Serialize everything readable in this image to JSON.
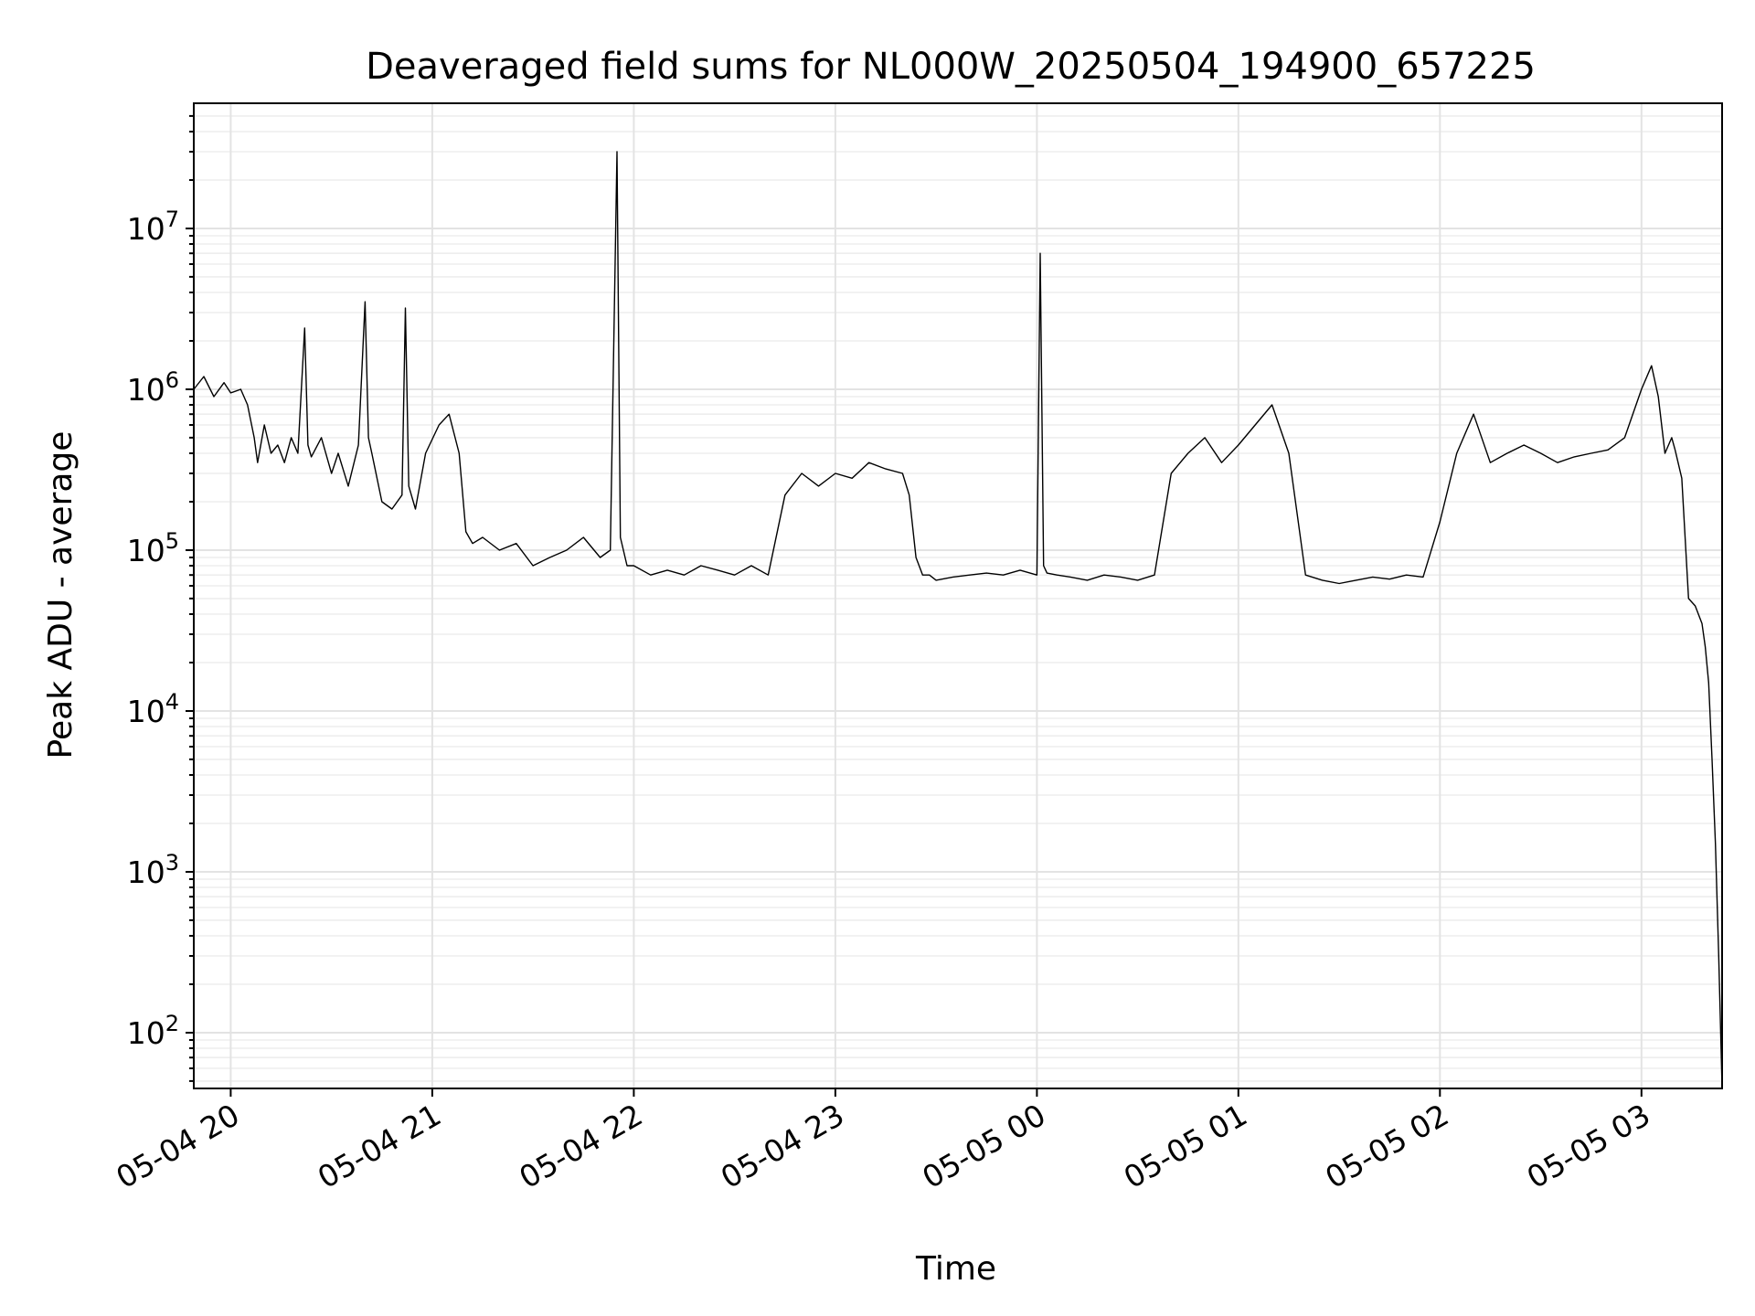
{
  "chart_data": {
    "type": "line",
    "title": "Deaveraged field sums for NL000W_20250504_194900_657225",
    "xlabel": "Time",
    "ylabel": "Peak ADU - average",
    "yscale": "log",
    "grid": true,
    "line_color": "#000000",
    "xlim": [
      "2025-05-04 19:49",
      "2025-05-05 03:24"
    ],
    "ylim": [
      45,
      60000000
    ],
    "x_ticks": [
      {
        "label": "05-04 20",
        "value": "2025-05-04 20:00"
      },
      {
        "label": "05-04 21",
        "value": "2025-05-04 21:00"
      },
      {
        "label": "05-04 22",
        "value": "2025-05-04 22:00"
      },
      {
        "label": "05-04 23",
        "value": "2025-05-04 23:00"
      },
      {
        "label": "05-05 00",
        "value": "2025-05-05 00:00"
      },
      {
        "label": "05-05 01",
        "value": "2025-05-05 01:00"
      },
      {
        "label": "05-05 02",
        "value": "2025-05-05 02:00"
      },
      {
        "label": "05-05 03",
        "value": "2025-05-05 03:00"
      }
    ],
    "y_ticks": [
      {
        "base": "10",
        "exp": "2",
        "value": 100
      },
      {
        "base": "10",
        "exp": "3",
        "value": 1000
      },
      {
        "base": "10",
        "exp": "4",
        "value": 10000
      },
      {
        "base": "10",
        "exp": "5",
        "value": 100000
      },
      {
        "base": "10",
        "exp": "6",
        "value": 1000000
      },
      {
        "base": "10",
        "exp": "7",
        "value": 10000000
      }
    ],
    "series": [
      {
        "x": [
          "2025-05-04 19:49",
          "2025-05-04 19:52",
          "2025-05-04 19:55",
          "2025-05-04 19:58",
          "2025-05-04 20:00",
          "2025-05-04 20:03",
          "2025-05-04 20:05",
          "2025-05-04 20:07",
          "2025-05-04 20:08",
          "2025-05-04 20:10",
          "2025-05-04 20:12",
          "2025-05-04 20:14",
          "2025-05-04 20:16",
          "2025-05-04 20:18",
          "2025-05-04 20:20",
          "2025-05-04 20:22",
          "2025-05-04 20:23",
          "2025-05-04 20:24",
          "2025-05-04 20:27",
          "2025-05-04 20:30",
          "2025-05-04 20:32",
          "2025-05-04 20:35",
          "2025-05-04 20:38",
          "2025-05-04 20:40",
          "2025-05-04 20:41",
          "2025-05-04 20:42",
          "2025-05-04 20:45",
          "2025-05-04 20:48",
          "2025-05-04 20:51",
          "2025-05-04 20:52",
          "2025-05-04 20:53",
          "2025-05-04 20:55",
          "2025-05-04 20:58",
          "2025-05-04 21:02",
          "2025-05-04 21:05",
          "2025-05-04 21:08",
          "2025-05-04 21:10",
          "2025-05-04 21:12",
          "2025-05-04 21:15",
          "2025-05-04 21:20",
          "2025-05-04 21:25",
          "2025-05-04 21:30",
          "2025-05-04 21:35",
          "2025-05-04 21:40",
          "2025-05-04 21:45",
          "2025-05-04 21:50",
          "2025-05-04 21:53",
          "2025-05-04 21:55",
          "2025-05-04 21:56",
          "2025-05-04 21:58",
          "2025-05-04 22:00",
          "2025-05-04 22:05",
          "2025-05-04 22:10",
          "2025-05-04 22:15",
          "2025-05-04 22:20",
          "2025-05-04 22:25",
          "2025-05-04 22:30",
          "2025-05-04 22:35",
          "2025-05-04 22:40",
          "2025-05-04 22:45",
          "2025-05-04 22:50",
          "2025-05-04 22:55",
          "2025-05-04 23:00",
          "2025-05-04 23:05",
          "2025-05-04 23:10",
          "2025-05-04 23:15",
          "2025-05-04 23:20",
          "2025-05-04 23:22",
          "2025-05-04 23:24",
          "2025-05-04 23:26",
          "2025-05-04 23:28",
          "2025-05-04 23:30",
          "2025-05-04 23:35",
          "2025-05-04 23:40",
          "2025-05-04 23:45",
          "2025-05-04 23:50",
          "2025-05-04 23:55",
          "2025-05-05 00:00",
          "2025-05-05 00:01",
          "2025-05-05 00:02",
          "2025-05-05 00:03",
          "2025-05-05 00:06",
          "2025-05-05 00:10",
          "2025-05-05 00:15",
          "2025-05-05 00:20",
          "2025-05-05 00:25",
          "2025-05-05 00:30",
          "2025-05-05 00:35",
          "2025-05-05 00:40",
          "2025-05-05 00:45",
          "2025-05-05 00:50",
          "2025-05-05 00:55",
          "2025-05-05 01:00",
          "2025-05-05 01:05",
          "2025-05-05 01:10",
          "2025-05-05 01:15",
          "2025-05-05 01:20",
          "2025-05-05 01:25",
          "2025-05-05 01:30",
          "2025-05-05 01:35",
          "2025-05-05 01:40",
          "2025-05-05 01:45",
          "2025-05-05 01:50",
          "2025-05-05 01:55",
          "2025-05-05 02:00",
          "2025-05-05 02:05",
          "2025-05-05 02:10",
          "2025-05-05 02:15",
          "2025-05-05 02:20",
          "2025-05-05 02:25",
          "2025-05-05 02:30",
          "2025-05-05 02:35",
          "2025-05-05 02:40",
          "2025-05-05 02:45",
          "2025-05-05 02:50",
          "2025-05-05 02:55",
          "2025-05-05 03:00",
          "2025-05-05 03:03",
          "2025-05-05 03:05",
          "2025-05-05 03:07",
          "2025-05-05 03:09",
          "2025-05-05 03:10",
          "2025-05-05 03:12",
          "2025-05-05 03:14",
          "2025-05-05 03:16",
          "2025-05-05 03:18",
          "2025-05-05 03:19",
          "2025-05-05 03:20",
          "2025-05-05 03:21",
          "2025-05-05 03:22",
          "2025-05-05 03:23",
          "2025-05-05 03:24"
        ],
        "values": [
          1000000,
          1200000,
          900000,
          1100000,
          950000,
          1000000,
          800000,
          500000,
          350000,
          600000,
          400000,
          450000,
          350000,
          500000,
          400000,
          2400000,
          450000,
          380000,
          500000,
          300000,
          400000,
          250000,
          450000,
          3500000,
          500000,
          400000,
          200000,
          180000,
          220000,
          3200000,
          250000,
          180000,
          400000,
          600000,
          700000,
          400000,
          130000,
          110000,
          120000,
          100000,
          110000,
          80000,
          90000,
          100000,
          120000,
          90000,
          100000,
          30000000,
          120000,
          80000,
          80000,
          70000,
          75000,
          70000,
          80000,
          75000,
          70000,
          80000,
          70000,
          220000,
          300000,
          250000,
          300000,
          280000,
          350000,
          320000,
          300000,
          220000,
          90000,
          70000,
          70000,
          65000,
          68000,
          70000,
          72000,
          70000,
          75000,
          70000,
          7000000,
          80000,
          72000,
          70000,
          68000,
          65000,
          70000,
          68000,
          65000,
          70000,
          300000,
          400000,
          500000,
          350000,
          450000,
          600000,
          800000,
          400000,
          70000,
          65000,
          62000,
          65000,
          68000,
          66000,
          70000,
          68000,
          150000,
          400000,
          700000,
          350000,
          400000,
          450000,
          400000,
          350000,
          380000,
          400000,
          420000,
          500000,
          1000000,
          1400000,
          900000,
          400000,
          500000,
          420000,
          280000,
          50000,
          45000,
          35000,
          25000,
          15000,
          5000,
          1500,
          300,
          45
        ]
      }
    ]
  }
}
